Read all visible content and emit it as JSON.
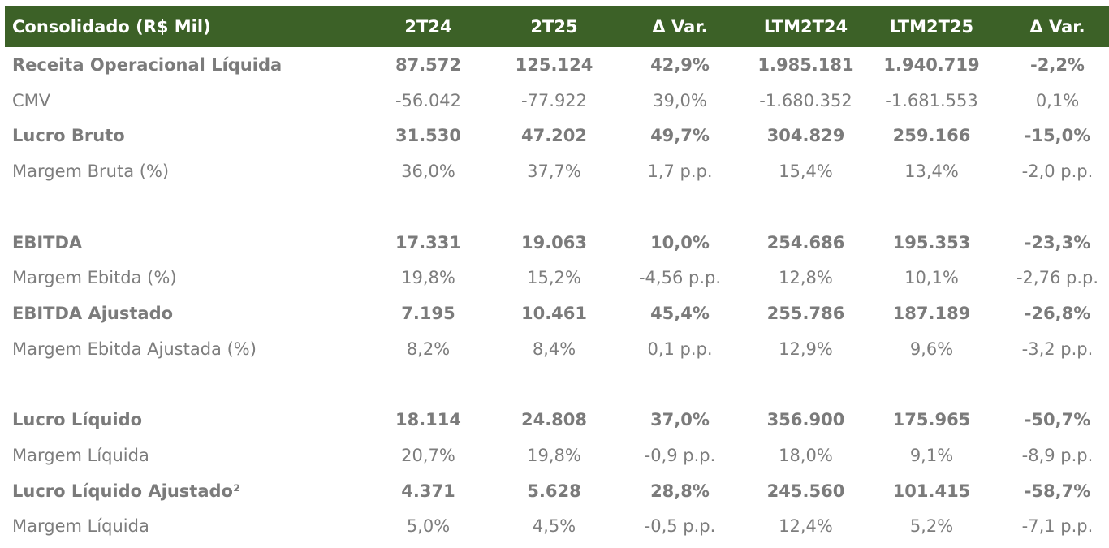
{
  "header": [
    "Consolidado (R$ Mil)",
    "2T24",
    "2T25",
    "Δ Var.",
    "LTM2T24",
    "LTM2T25",
    "Δ Var."
  ],
  "rows": [
    {
      "bold": true,
      "cells": [
        "Receita Operacional Líquida",
        "87.572",
        "125.124",
        "42,9%",
        "1.985.181",
        "1.940.719",
        "-2,2%"
      ]
    },
    {
      "bold": false,
      "cells": [
        "CMV",
        "-56.042",
        "-77.922",
        "39,0%",
        "-1.680.352",
        "-1.681.553",
        "0,1%"
      ]
    },
    {
      "bold": true,
      "cells": [
        "Lucro Bruto",
        "31.530",
        "47.202",
        "49,7%",
        "304.829",
        "259.166",
        "-15,0%"
      ]
    },
    {
      "bold": false,
      "cells": [
        "Margem Bruta (%)",
        "36,0%",
        "37,7%",
        "1,7 p.p.",
        "15,4%",
        "13,4%",
        "-2,0 p.p."
      ]
    },
    {
      "spacer": true
    },
    {
      "bold": true,
      "cells": [
        "EBITDA",
        "17.331",
        "19.063",
        "10,0%",
        "254.686",
        "195.353",
        "-23,3%"
      ]
    },
    {
      "bold": false,
      "cells": [
        "Margem Ebitda (%)",
        "19,8%",
        "15,2%",
        "-4,56 p.p.",
        "12,8%",
        "10,1%",
        "-2,76 p.p."
      ]
    },
    {
      "bold": true,
      "cells": [
        "EBITDA Ajustado",
        "7.195",
        "10.461",
        "45,4%",
        "255.786",
        "187.189",
        "-26,8%"
      ]
    },
    {
      "bold": false,
      "cells": [
        "Margem Ebitda Ajustada (%)",
        "8,2%",
        "8,4%",
        "0,1 p.p.",
        "12,9%",
        "9,6%",
        "-3,2 p.p."
      ]
    },
    {
      "spacer": true
    },
    {
      "bold": true,
      "cells": [
        "Lucro Líquido",
        "18.114",
        "24.808",
        "37,0%",
        "356.900",
        "175.965",
        "-50,7%"
      ]
    },
    {
      "bold": false,
      "cells": [
        "Margem Líquida",
        "20,7%",
        "19,8%",
        "-0,9 p.p.",
        "18,0%",
        "9,1%",
        "-8,9 p.p."
      ]
    },
    {
      "bold": true,
      "cells": [
        "Lucro Líquido Ajustado²",
        "4.371",
        "5.628",
        "28,8%",
        "245.560",
        "101.415",
        "-58,7%"
      ]
    },
    {
      "bold": false,
      "cells": [
        "Margem Líquida",
        "5,0%",
        "4,5%",
        "-0,5 p.p.",
        "12,4%",
        "5,2%",
        "-7,1 p.p."
      ]
    }
  ],
  "colors": {
    "header_bg": "#3c6127",
    "header_text": "#ffffff",
    "body_text": "#7d7d7d"
  }
}
